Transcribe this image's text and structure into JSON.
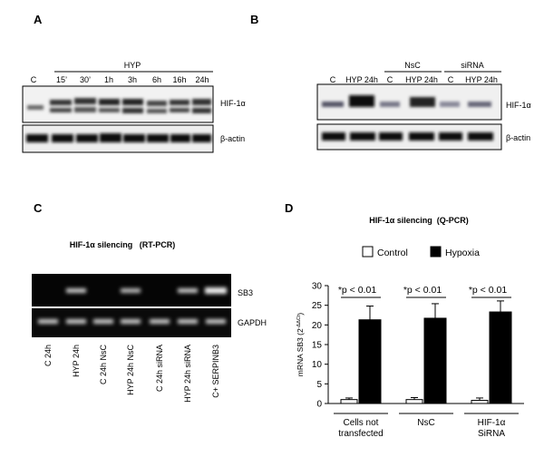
{
  "panel_a": {
    "label": "A",
    "group": "HYP",
    "lanes": [
      "C",
      "15’",
      "30’",
      "1h",
      "3h",
      "6h",
      "16h",
      "24h"
    ],
    "bands": [
      "HIF-1α",
      "β-actin"
    ]
  },
  "panel_b": {
    "label": "B",
    "lanes": [
      "C",
      "HYP 24h",
      "C",
      "HYP 24h",
      "C",
      "HYP 24h"
    ],
    "groups": [
      "NsC",
      "siRNA"
    ],
    "bands": [
      "HIF-1α",
      "β-actin"
    ]
  },
  "panel_c": {
    "label": "C",
    "title": "HIF-1α silencing   (RT-PCR)",
    "lanes": [
      "C 24h",
      "HYP 24h",
      "C 24h NsC",
      "HYP 24h NsC",
      "C 24h siRNA",
      "HYP 24h siRNA",
      "C+ SERPINB3"
    ],
    "bands": [
      "SB3",
      "GAPDH"
    ]
  },
  "chart_data": {
    "type": "bar",
    "panel_label": "D",
    "title": "HIF-1α silencing  (Q-PCR)",
    "y_label": "mRNA SB3 (2",
    "y_label_superscript": "-ΔΔCt",
    "y_label_end": ")",
    "categories": [
      [
        "Cells not",
        "transfected"
      ],
      [
        "NsC"
      ],
      [
        "HIF-1α",
        "SiRNA"
      ]
    ],
    "series": [
      {
        "name": "Control",
        "color": "#ffffff",
        "values": [
          1.0,
          1.0,
          0.8
        ],
        "errors": [
          0.4,
          0.5,
          0.6
        ]
      },
      {
        "name": "Hypoxia",
        "color": "#000000",
        "values": [
          21.3,
          21.7,
          23.3
        ],
        "errors": [
          3.5,
          3.7,
          2.8
        ]
      }
    ],
    "annotations": [
      "*p < 0.01",
      "*p < 0.01",
      "*p < 0.01"
    ],
    "ylim": [
      0,
      30
    ],
    "yticks": [
      0,
      5,
      10,
      15,
      20,
      25,
      30
    ]
  }
}
